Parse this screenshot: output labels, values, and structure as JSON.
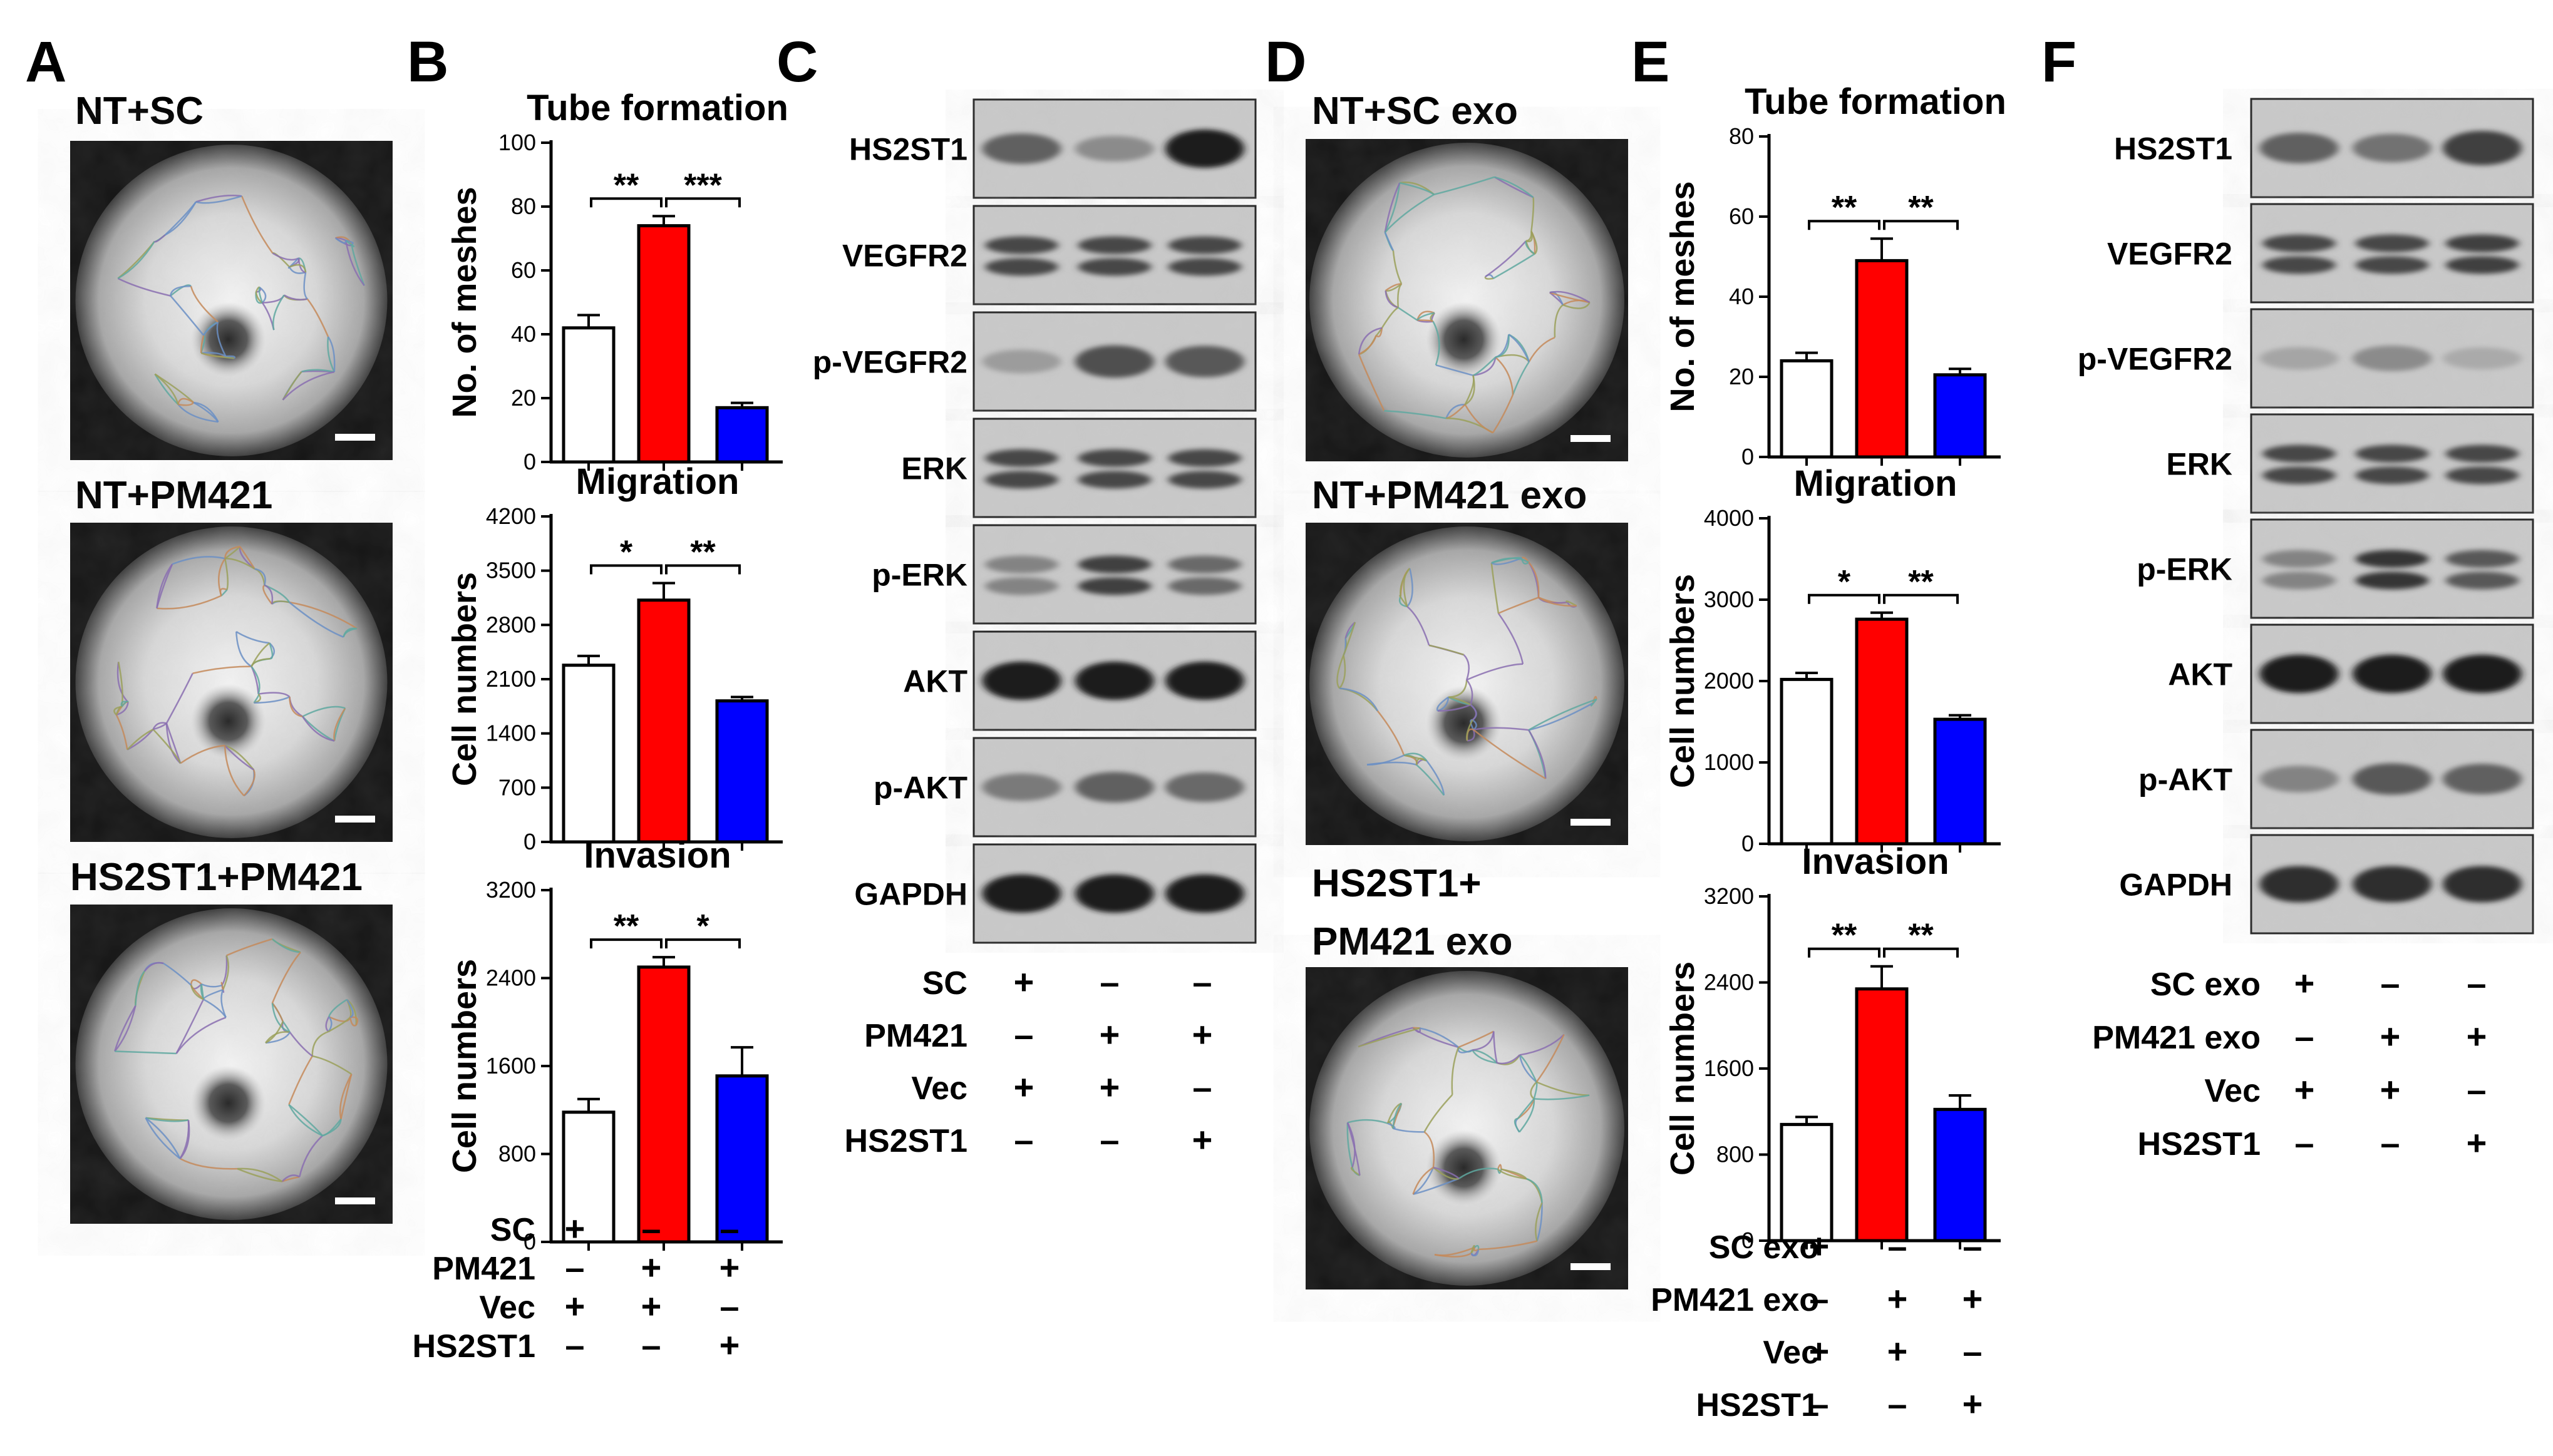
{
  "panels": {
    "A": {
      "letter": "A",
      "images": [
        {
          "label": "NT+SC"
        },
        {
          "label": "NT+PM421"
        },
        {
          "label": "HS2ST1+PM421"
        }
      ]
    },
    "B": {
      "letter": "B"
    },
    "C": {
      "letter": "C"
    },
    "D": {
      "letter": "D",
      "images": [
        {
          "label": "NT+SC exo"
        },
        {
          "label": "NT+PM421 exo"
        },
        {
          "label_line1": "HS2ST1+",
          "label_line2": "PM421 exo"
        }
      ]
    },
    "E": {
      "letter": "E"
    },
    "F": {
      "letter": "F"
    }
  },
  "conditions_B": {
    "rows": [
      {
        "label": "SC",
        "signs": [
          "+",
          "–",
          "–"
        ]
      },
      {
        "label": "PM421",
        "signs": [
          "–",
          "+",
          "+"
        ]
      },
      {
        "label": "Vec",
        "signs": [
          "+",
          "+",
          "–"
        ]
      },
      {
        "label": "HS2ST1",
        "signs": [
          "–",
          "–",
          "+"
        ]
      }
    ]
  },
  "conditions_C": {
    "rows": [
      {
        "label": "SC",
        "signs": [
          "+",
          "–",
          "–"
        ]
      },
      {
        "label": "PM421",
        "signs": [
          "–",
          "+",
          "+"
        ]
      },
      {
        "label": "Vec",
        "signs": [
          "+",
          "+",
          "–"
        ]
      },
      {
        "label": "HS2ST1",
        "signs": [
          "–",
          "–",
          "+"
        ]
      }
    ]
  },
  "conditions_E": {
    "rows": [
      {
        "label": "SC exo",
        "signs": [
          "+",
          "–",
          "–"
        ]
      },
      {
        "label": "PM421 exo",
        "signs": [
          "–",
          "+",
          "+"
        ]
      },
      {
        "label": "Vec",
        "signs": [
          "+",
          "+",
          "–"
        ]
      },
      {
        "label": "HS2ST1",
        "signs": [
          "–",
          "–",
          "+"
        ]
      }
    ]
  },
  "conditions_F": {
    "rows": [
      {
        "label": "SC exo",
        "signs": [
          "+",
          "–",
          "–"
        ]
      },
      {
        "label": "PM421 exo",
        "signs": [
          "–",
          "+",
          "+"
        ]
      },
      {
        "label": "Vec",
        "signs": [
          "+",
          "+",
          "–"
        ]
      },
      {
        "label": "HS2ST1",
        "signs": [
          "–",
          "–",
          "+"
        ]
      }
    ]
  },
  "blots_C": [
    {
      "label": "HS2ST1",
      "intensity": [
        0.55,
        0.3,
        0.95
      ]
    },
    {
      "label": "VEGFR2",
      "intensity": [
        0.7,
        0.7,
        0.7
      ]
    },
    {
      "label": "p-VEGFR2",
      "intensity": [
        0.2,
        0.65,
        0.6
      ]
    },
    {
      "label": "ERK",
      "intensity": [
        0.7,
        0.7,
        0.7
      ]
    },
    {
      "label": "p-ERK",
      "intensity": [
        0.35,
        0.75,
        0.5
      ]
    },
    {
      "label": "AKT",
      "intensity": [
        0.95,
        0.95,
        0.95
      ]
    },
    {
      "label": "p-AKT",
      "intensity": [
        0.4,
        0.55,
        0.5
      ]
    },
    {
      "label": "GAPDH",
      "intensity": [
        0.95,
        0.95,
        0.95
      ]
    }
  ],
  "blots_F": [
    {
      "label": "HS2ST1",
      "intensity": [
        0.55,
        0.45,
        0.75
      ]
    },
    {
      "label": "VEGFR2",
      "intensity": [
        0.7,
        0.7,
        0.75
      ]
    },
    {
      "label": "p-VEGFR2",
      "intensity": [
        0.15,
        0.3,
        0.12
      ]
    },
    {
      "label": "ERK",
      "intensity": [
        0.7,
        0.7,
        0.7
      ]
    },
    {
      "label": "p-ERK",
      "intensity": [
        0.35,
        0.8,
        0.6
      ]
    },
    {
      "label": "AKT",
      "intensity": [
        0.95,
        0.95,
        0.95
      ]
    },
    {
      "label": "p-AKT",
      "intensity": [
        0.35,
        0.6,
        0.55
      ]
    },
    {
      "label": "GAPDH",
      "intensity": [
        0.85,
        0.85,
        0.85
      ]
    }
  ],
  "colors": {
    "group1": "#ffffff",
    "group2": "#ff0000",
    "group3": "#0000ff"
  },
  "chart_data": [
    {
      "id": "B-tube",
      "type": "bar",
      "title": "Tube formation",
      "ylabel": "No. of meshes",
      "ylim": [
        0,
        100
      ],
      "yticks": [
        "0",
        "20",
        "40",
        "60",
        "80",
        "100"
      ],
      "values": [
        42,
        74,
        17
      ],
      "errors": [
        4,
        3,
        1.5
      ],
      "sig": [
        {
          "from": 0,
          "to": 1,
          "label": "**"
        },
        {
          "from": 1,
          "to": 2,
          "label": "***"
        }
      ]
    },
    {
      "id": "B-migration",
      "type": "bar",
      "title": "Migration",
      "ylabel": "Cell numbers",
      "ylim": [
        0,
        4200
      ],
      "yticks": [
        "0",
        "700",
        "1400",
        "2100",
        "2800",
        "3500",
        "4200"
      ],
      "values": [
        2280,
        3120,
        1820
      ],
      "errors": [
        120,
        220,
        50
      ],
      "sig": [
        {
          "from": 0,
          "to": 1,
          "label": "*"
        },
        {
          "from": 1,
          "to": 2,
          "label": "**"
        }
      ]
    },
    {
      "id": "B-invasion",
      "type": "bar",
      "title": "Invasion",
      "ylabel": "Cell numbers",
      "ylim": [
        0,
        3200
      ],
      "yticks": [
        "0",
        "800",
        "1600",
        "2400",
        "3200"
      ],
      "values": [
        1180,
        2500,
        1510
      ],
      "errors": [
        120,
        90,
        260
      ],
      "sig": [
        {
          "from": 0,
          "to": 1,
          "label": "**"
        },
        {
          "from": 1,
          "to": 2,
          "label": "*"
        }
      ]
    },
    {
      "id": "E-tube",
      "type": "bar",
      "title": "Tube formation",
      "ylabel": "No. of meshes",
      "ylim": [
        0,
        80
      ],
      "yticks": [
        "0",
        "20",
        "40",
        "60",
        "80"
      ],
      "values": [
        24,
        49,
        20.5
      ],
      "errors": [
        2,
        5.5,
        1.5
      ],
      "sig": [
        {
          "from": 0,
          "to": 1,
          "label": "**"
        },
        {
          "from": 1,
          "to": 2,
          "label": "**"
        }
      ]
    },
    {
      "id": "E-migration",
      "type": "bar",
      "title": "Migration",
      "ylabel": "Cell numbers",
      "ylim": [
        0,
        4000
      ],
      "yticks": [
        "0",
        "1000",
        "2000",
        "3000",
        "4000"
      ],
      "values": [
        2020,
        2760,
        1530
      ],
      "errors": [
        80,
        80,
        50
      ],
      "sig": [
        {
          "from": 0,
          "to": 1,
          "label": "*"
        },
        {
          "from": 1,
          "to": 2,
          "label": "**"
        }
      ]
    },
    {
      "id": "E-invasion",
      "type": "bar",
      "title": "Invasion",
      "ylabel": "Cell numbers",
      "ylim": [
        0,
        3200
      ],
      "yticks": [
        "0",
        "800",
        "1600",
        "2400",
        "3200"
      ],
      "values": [
        1080,
        2340,
        1220
      ],
      "errors": [
        70,
        210,
        130
      ],
      "sig": [
        {
          "from": 0,
          "to": 1,
          "label": "**"
        },
        {
          "from": 1,
          "to": 2,
          "label": "**"
        }
      ]
    }
  ]
}
